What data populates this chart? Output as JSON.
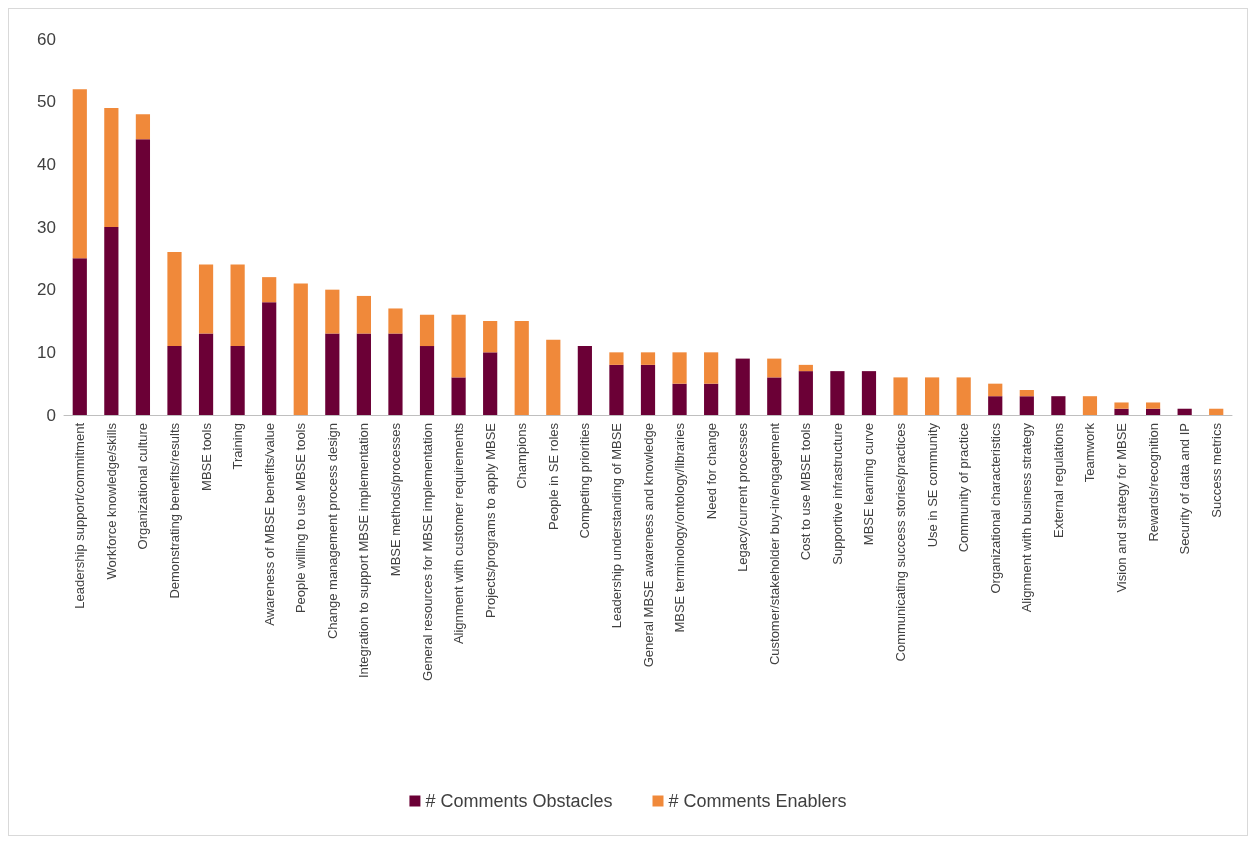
{
  "chart_data": {
    "type": "bar",
    "stacked": true,
    "categories": [
      "Leadership support/commitment",
      "Workforce knowledge/skills",
      "Organizational culture",
      "Demonstrating benefits/results",
      "MBSE tools",
      "Training",
      "Awareness of MBSE benefits/value",
      "People willing to use MBSE tools",
      "Change management process design",
      "Integration to support MBSE implementation",
      "MBSE methods/processes",
      "General resources for MBSE implementation",
      "Alignment with customer requirements",
      "Projects/programs to apply MBSE",
      "Champions",
      "People in SE roles",
      "Competing priorities",
      "Leadership understanding of MBSE",
      "General MBSE awareness and knowledge",
      "MBSE terminology/ontology/libraries",
      "Need for change",
      "Legacy/current processes",
      "Customer/stakeholder buy-in/engagement",
      "Cost to use MBSE tools",
      "Supportive infrastructure",
      "MBSE learning curve",
      "Communicating success stories/practices",
      "Use in SE community",
      "Community of practice",
      "Organizational characteristics",
      "Alignment with business strategy",
      "External regulations",
      "Teamwork",
      "Vision and strategy for MBSE",
      "Rewards/recognition",
      "Security of data and IP",
      "Success metrics"
    ],
    "series": [
      {
        "name": "# Comments Obstacles",
        "color": "#6b0036",
        "values": [
          25,
          30,
          44,
          11,
          13,
          11,
          18,
          0,
          13,
          13,
          13,
          11,
          6,
          10,
          0,
          0,
          11,
          8,
          8,
          5,
          5,
          9,
          6,
          7,
          7,
          7,
          0,
          0,
          0,
          3,
          3,
          3,
          0,
          1,
          1,
          1,
          0
        ]
      },
      {
        "name": "# Comments Enablers",
        "color": "#f0893a",
        "values": [
          27,
          19,
          4,
          15,
          11,
          13,
          4,
          21,
          7,
          6,
          4,
          5,
          10,
          5,
          15,
          12,
          0,
          2,
          2,
          5,
          5,
          0,
          3,
          1,
          0,
          0,
          6,
          6,
          6,
          2,
          1,
          0,
          3,
          1,
          1,
          0,
          1
        ]
      }
    ],
    "ylim": [
      0,
      60
    ],
    "yticks": [
      0,
      10,
      20,
      30,
      40,
      50,
      60
    ],
    "grid": false,
    "legend": "bottom"
  }
}
